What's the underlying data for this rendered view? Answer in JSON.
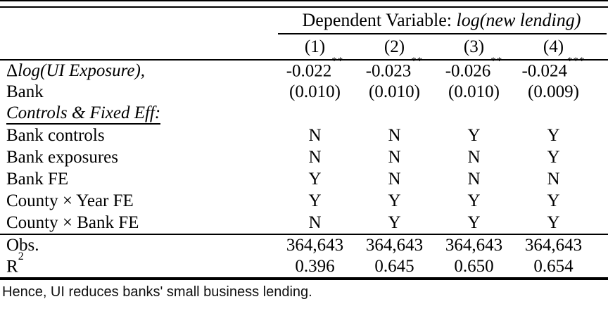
{
  "header": {
    "dep_var_label": "Dependent Variable: ",
    "dep_var_math": "log(new lending)",
    "col_numbers": [
      "(1)",
      "(2)",
      "(3)",
      "(4)"
    ]
  },
  "coef_row": {
    "delta": "Δ",
    "label_math": "log(UI Exposure),",
    "label_line2": "Bank",
    "cells": [
      {
        "coef": "-0.022",
        "stars": "**"
      },
      {
        "coef": "-0.023",
        "stars": "**"
      },
      {
        "coef": "-0.026",
        "stars": "**"
      },
      {
        "coef": "-0.024",
        "stars": "***"
      }
    ],
    "se_cells": [
      "(0.010)",
      "(0.010)",
      "(0.010)",
      "(0.009)"
    ]
  },
  "section_heading": "Controls & Fixed Eff:",
  "fe_rows": [
    {
      "label": "Bank controls",
      "values": [
        "N",
        "N",
        "Y",
        "Y"
      ]
    },
    {
      "label": "Bank exposures",
      "values": [
        "N",
        "N",
        "N",
        "Y"
      ]
    },
    {
      "label": "Bank FE",
      "values": [
        "Y",
        "N",
        "N",
        "N"
      ]
    },
    {
      "label": "County × Year FE",
      "values": [
        "Y",
        "Y",
        "Y",
        "Y"
      ]
    },
    {
      "label": "County × Bank FE",
      "values": [
        "N",
        "Y",
        "Y",
        "Y"
      ]
    }
  ],
  "stats_rows": {
    "obs": {
      "label": "Obs.",
      "values": [
        "364,643",
        "364,643",
        "364,643",
        "364,643"
      ]
    },
    "r2": {
      "label_base": "R",
      "label_sup": "2",
      "values": [
        "0.396",
        "0.645",
        "0.650",
        "0.654"
      ]
    }
  },
  "caption": "Hence, UI reduces banks' small business lending."
}
